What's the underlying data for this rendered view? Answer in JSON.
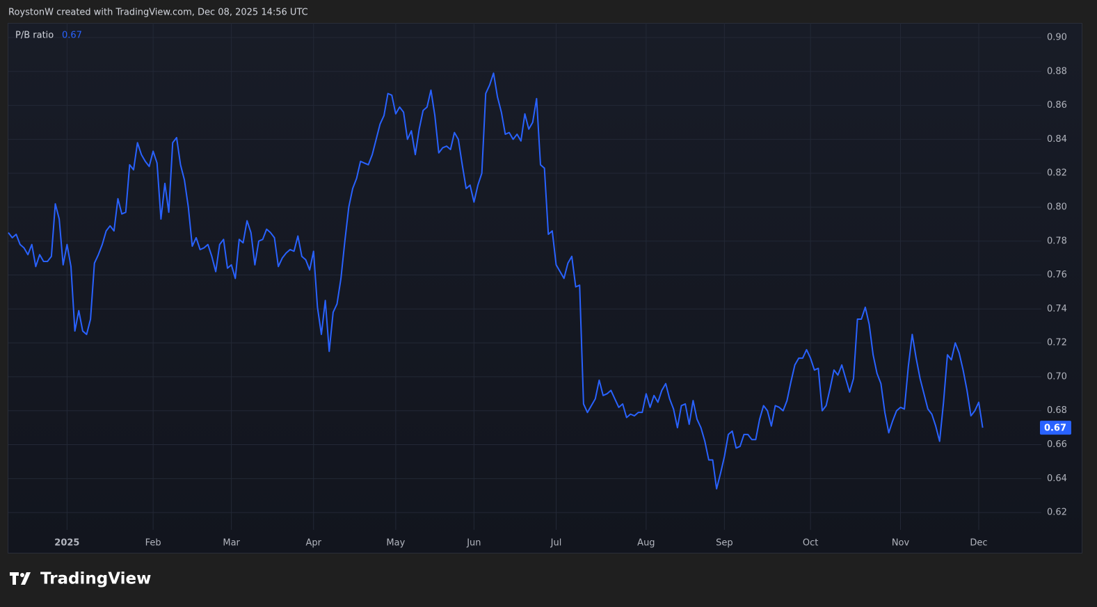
{
  "chart_data": {
    "type": "line",
    "attribution": "RoystonW created with TradingView.com, Dec 08, 2025 14:56 UTC",
    "brand": "TradingView",
    "xlim": [
      0,
      264
    ],
    "xticks": [
      {
        "value": 15,
        "label": "2025"
      },
      {
        "value": 37,
        "label": "Feb"
      },
      {
        "value": 57,
        "label": "Mar"
      },
      {
        "value": 78,
        "label": "Apr"
      },
      {
        "value": 99,
        "label": "May"
      },
      {
        "value": 119,
        "label": "Jun"
      },
      {
        "value": 140,
        "label": "Jul"
      },
      {
        "value": 163,
        "label": "Aug"
      },
      {
        "value": 183,
        "label": "Sep"
      },
      {
        "value": 205,
        "label": "Oct"
      },
      {
        "value": 228,
        "label": "Nov"
      },
      {
        "value": 248,
        "label": "Dec"
      }
    ],
    "ylim": [
      0.6098,
      0.9086
    ],
    "yticks": [
      0.62,
      0.64,
      0.66,
      0.68,
      {
        "value": 0.7,
        "label": "0.70"
      },
      0.72,
      0.74,
      0.76,
      0.78,
      {
        "value": 0.8,
        "label": "0.80"
      },
      0.82,
      0.84,
      0.86,
      0.88,
      {
        "value": 0.9,
        "label": "0.90"
      }
    ],
    "grid": true,
    "series": [
      {
        "name": "P/B ratio",
        "color": "#2962ff",
        "values": [
          0.785,
          0.782,
          0.784,
          0.778,
          0.776,
          0.772,
          0.778,
          0.765,
          0.772,
          0.768,
          0.768,
          0.771,
          0.802,
          0.793,
          0.766,
          0.778,
          0.765,
          0.727,
          0.739,
          0.727,
          0.725,
          0.734,
          0.767,
          0.772,
          0.778,
          0.786,
          0.789,
          0.786,
          0.805,
          0.796,
          0.797,
          0.825,
          0.822,
          0.838,
          0.831,
          0.827,
          0.824,
          0.833,
          0.826,
          0.793,
          0.814,
          0.797,
          0.838,
          0.841,
          0.825,
          0.816,
          0.8,
          0.777,
          0.782,
          0.775,
          0.776,
          0.778,
          0.771,
          0.762,
          0.778,
          0.781,
          0.764,
          0.766,
          0.758,
          0.781,
          0.779,
          0.792,
          0.785,
          0.766,
          0.78,
          0.781,
          0.787,
          0.785,
          0.782,
          0.765,
          0.77,
          0.773,
          0.775,
          0.774,
          0.783,
          0.771,
          0.769,
          0.763,
          0.774,
          0.741,
          0.725,
          0.745,
          0.715,
          0.738,
          0.743,
          0.758,
          0.78,
          0.8,
          0.811,
          0.817,
          0.827,
          0.826,
          0.825,
          0.831,
          0.84,
          0.849,
          0.854,
          0.867,
          0.866,
          0.855,
          0.859,
          0.856,
          0.84,
          0.845,
          0.831,
          0.846,
          0.857,
          0.859,
          0.869,
          0.854,
          0.832,
          0.835,
          0.836,
          0.834,
          0.844,
          0.84,
          0.825,
          0.811,
          0.813,
          0.803,
          0.813,
          0.82,
          0.867,
          0.872,
          0.879,
          0.865,
          0.856,
          0.843,
          0.844,
          0.84,
          0.843,
          0.839,
          0.855,
          0.846,
          0.85,
          0.864,
          0.825,
          0.823,
          0.784,
          0.786,
          0.766,
          0.762,
          0.758,
          0.767,
          0.771,
          0.753,
          0.754,
          0.684,
          0.679,
          0.683,
          0.687,
          0.698,
          0.689,
          0.69,
          0.692,
          0.687,
          0.682,
          0.684,
          0.676,
          0.678,
          0.677,
          0.679,
          0.679,
          0.69,
          0.682,
          0.689,
          0.685,
          0.692,
          0.696,
          0.687,
          0.681,
          0.67,
          0.683,
          0.684,
          0.672,
          0.686,
          0.675,
          0.67,
          0.662,
          0.651,
          0.651,
          0.634,
          0.643,
          0.653,
          0.666,
          0.668,
          0.658,
          0.659,
          0.666,
          0.666,
          0.663,
          0.663,
          0.675,
          0.683,
          0.68,
          0.671,
          0.683,
          0.682,
          0.68,
          0.686,
          0.697,
          0.707,
          0.711,
          0.711,
          0.716,
          0.711,
          0.704,
          0.705,
          0.68,
          0.683,
          0.693,
          0.704,
          0.701,
          0.707,
          0.699,
          0.691,
          0.699,
          0.734,
          0.734,
          0.741,
          0.731,
          0.713,
          0.702,
          0.696,
          0.679,
          0.667,
          0.674,
          0.68,
          0.682,
          0.681,
          0.706,
          0.725,
          0.711,
          0.699,
          0.69,
          0.681,
          0.678,
          0.671,
          0.662,
          0.685,
          0.713,
          0.71,
          0.72,
          0.714,
          0.704,
          0.692,
          0.677,
          0.68,
          0.685,
          0.67
        ]
      }
    ]
  }
}
